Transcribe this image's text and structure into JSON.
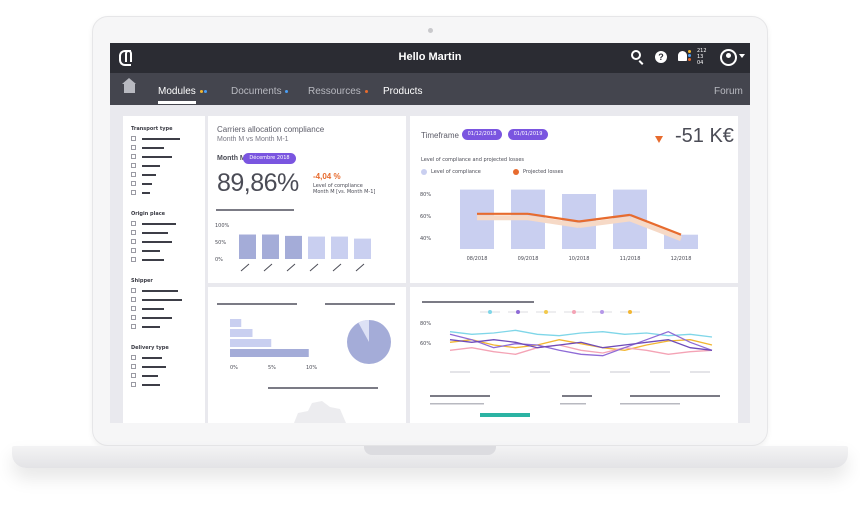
{
  "topbar": {
    "greeting": "Hello Martin",
    "help_glyph": "?",
    "notification_counts": [
      "212",
      "13",
      "04"
    ]
  },
  "nav": {
    "items": [
      {
        "label": "Modules",
        "active": true,
        "dots": [
          "#f2b632",
          "#4b9ef5"
        ]
      },
      {
        "label": "Documents",
        "active": false,
        "dots": [
          "#4b9ef5"
        ]
      },
      {
        "label": "Ressources",
        "active": false,
        "dots": [
          "#e76b2e"
        ]
      },
      {
        "label": "Products",
        "active": false,
        "dots": []
      }
    ],
    "forum_label": "Forum"
  },
  "filters": {
    "groups": [
      {
        "title": "Transport type",
        "rows": 7
      },
      {
        "title": "Origin place",
        "rows": 5
      },
      {
        "title": "Shipper",
        "rows": 5
      },
      {
        "title": "Delivery type",
        "rows": 4
      }
    ]
  },
  "compliance_card": {
    "title": "Carriers allocation compliance",
    "subtitle": "Month M vs Month M-1",
    "month_label": "Month M",
    "month_pill": "Décembre 2018",
    "value": "89,86%",
    "delta": "-4,04 %",
    "delta_note_1": "Level of compliance",
    "delta_note_2": "Month M [vs. Month M-1]"
  },
  "timeframe_card": {
    "label": "Timeframe",
    "date_from": "01/12/2018",
    "date_to": "01/01/2019",
    "kpi": "-51 K€",
    "chart_title": "Level of compliance and projected losses",
    "legend_compliance": "Level of compliance",
    "legend_losses": "Projected losses"
  },
  "colors": {
    "accent": "#7a55e0",
    "bar": "#c9cff0",
    "bar_dark": "#a4acd8",
    "line": "#e76b2e",
    "dark": "#2b2c33"
  },
  "chart_data": [
    {
      "type": "bar",
      "title": "",
      "categories": [
        "",
        "",
        "",
        "",
        "",
        ""
      ],
      "y_ticks": [
        "100%",
        "50%",
        "0%"
      ],
      "ylim": [
        0,
        100
      ],
      "values": [
        72,
        72,
        68,
        66,
        66,
        60
      ]
    },
    {
      "type": "bar",
      "title": "Level of compliance and projected losses",
      "categories": [
        "08/2018",
        "09/2018",
        "10/2018",
        "11/2018",
        "12/2018"
      ],
      "y_ticks": [
        "80%",
        "60%",
        "40%"
      ],
      "ylim": [
        30,
        90
      ],
      "series": [
        {
          "name": "Level of compliance",
          "values": [
            84,
            84,
            80,
            84,
            43
          ]
        },
        {
          "name": "Projected losses",
          "type": "line",
          "values": [
            62,
            62,
            55,
            61,
            43
          ]
        }
      ]
    },
    {
      "type": "bar",
      "orientation": "horizontal",
      "x_ticks": [
        "0%",
        "5%",
        "10%"
      ],
      "xlim": [
        0,
        12
      ],
      "values": [
        1.5,
        3,
        5.5,
        10.5
      ]
    },
    {
      "type": "pie",
      "values": [
        92,
        8
      ]
    },
    {
      "type": "line",
      "y_ticks": [
        "80%",
        "60%"
      ],
      "legend_colors": [
        "#7fd6e8",
        "#8e6bd6",
        "#f2c94c",
        "#f4a3b5",
        "#b597e8",
        "#f2b632"
      ],
      "series": [
        {
          "color": "#f2b632",
          "values": [
            64,
            66,
            62,
            60,
            62,
            66,
            63,
            60,
            58,
            62,
            65,
            66,
            62
          ]
        },
        {
          "color": "#7fd6e8",
          "values": [
            72,
            70,
            71,
            73,
            70,
            69,
            71,
            72,
            70,
            71,
            69,
            70,
            68
          ]
        },
        {
          "color": "#f4a3b5",
          "values": [
            58,
            60,
            57,
            55,
            60,
            62,
            58,
            56,
            60,
            58,
            55,
            57,
            58
          ]
        },
        {
          "color": "#8e6bd6",
          "values": [
            70,
            66,
            60,
            63,
            62,
            58,
            55,
            54,
            60,
            66,
            72,
            64,
            58
          ]
        },
        {
          "color": "#6f4bb8",
          "values": [
            66,
            64,
            66,
            64,
            60,
            62,
            64,
            60,
            62,
            64,
            66,
            60,
            58
          ]
        }
      ]
    }
  ]
}
